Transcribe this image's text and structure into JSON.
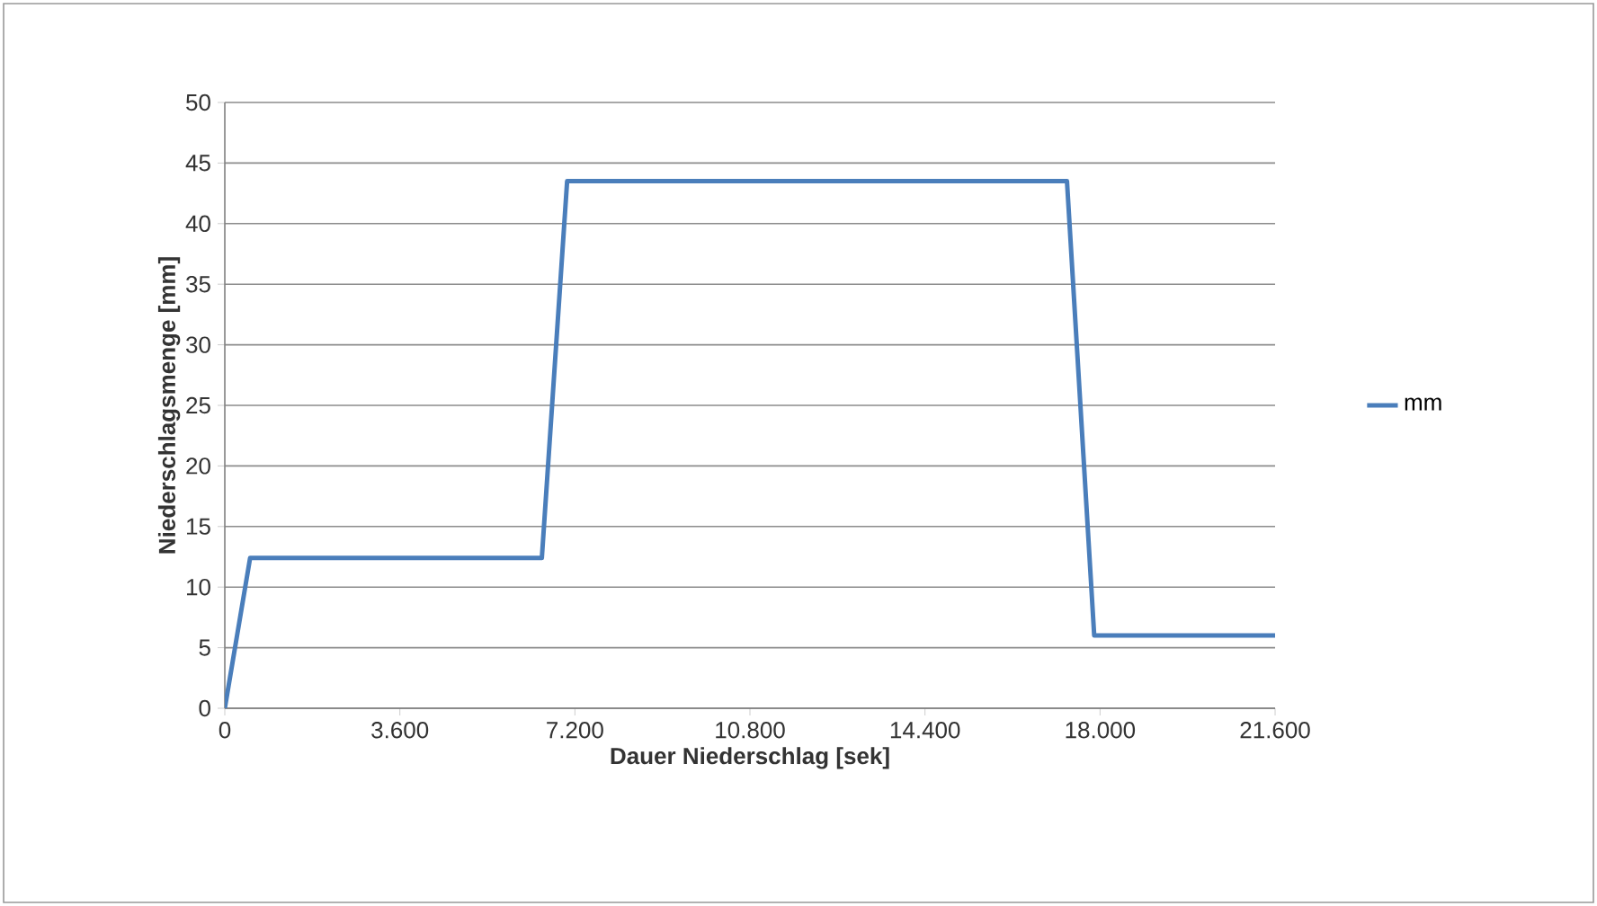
{
  "chart_data": {
    "type": "line",
    "xlabel": "Dauer Niederschlag [sek]",
    "ylabel": "Niederschlagsmenge [mm]",
    "x": [
      0,
      520,
      6520,
      7040,
      17320,
      17880,
      21600
    ],
    "series": [
      {
        "name": "mm",
        "color": "#4a7ebb",
        "values": [
          0,
          12.4,
          12.4,
          43.5,
          43.5,
          6,
          6
        ]
      }
    ],
    "xlim": [
      0,
      21600
    ],
    "xticks": [
      0,
      {
        "value": 3600,
        "label": "3.600"
      },
      {
        "value": 7200,
        "label": "7.200"
      },
      {
        "value": 10800,
        "label": "10.800"
      },
      {
        "value": 14400,
        "label": "14.400"
      },
      {
        "value": 18000,
        "label": "18.000"
      },
      {
        "value": 21600,
        "label": "21.600"
      }
    ],
    "ylim": [
      0,
      50
    ],
    "yticks": [
      0,
      5,
      10,
      15,
      20,
      25,
      30,
      35,
      40,
      45,
      50
    ],
    "grid": "y",
    "legend": "right",
    "marker": "none",
    "line_style": "solid"
  }
}
